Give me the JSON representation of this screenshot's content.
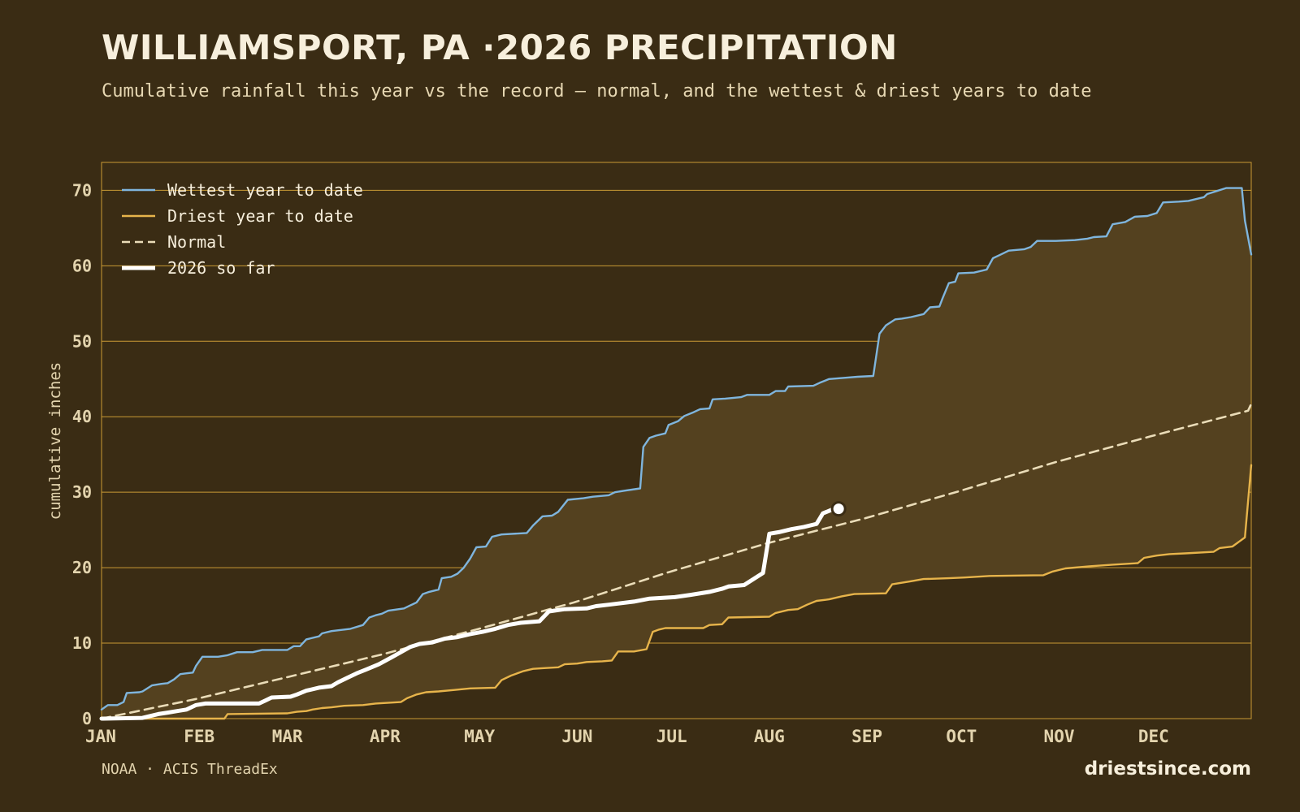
{
  "header": {
    "title": "WILLIAMSPORT, PA ·2026 PRECIPITATION",
    "subtitle": "Cumulative rainfall this year vs the record — normal, and the wettest & driest years to date"
  },
  "footer": {
    "source": "NOAA · ACIS ThreadEx",
    "site": "driestsince.com"
  },
  "colors": {
    "background": "#3a2c14",
    "band": "#54411f",
    "grid": "#c99a35",
    "wettest": "#7fb5dd",
    "driest": "#e7b44b",
    "normal": "#eadcb8",
    "current": "#ffffff"
  },
  "chart_data": {
    "type": "line",
    "xlabel": "",
    "ylabel": "cumulative inches",
    "ylim": [
      0,
      73.7
    ],
    "yticks": [
      0,
      10,
      20,
      30,
      40,
      50,
      60,
      70
    ],
    "months": [
      "JAN",
      "FEB",
      "MAR",
      "APR",
      "MAY",
      "JUN",
      "JUL",
      "AUG",
      "SEP",
      "OCT",
      "NOV",
      "DEC"
    ],
    "x_unit": "day of year",
    "xlim": [
      1,
      366
    ],
    "legend": {
      "placement": "top-left",
      "entries": [
        "Wettest year to date",
        "Driest year to date",
        "Normal",
        "2026 so far"
      ]
    },
    "band": "fill between wettest and driest",
    "series": [
      {
        "name": "Wettest year to date",
        "style": "solid",
        "points": [
          [
            1,
            1.2
          ],
          [
            3,
            1.8
          ],
          [
            6,
            1.8
          ],
          [
            8,
            2.2
          ],
          [
            9,
            3.4
          ],
          [
            13,
            3.5
          ],
          [
            14,
            3.6
          ],
          [
            17,
            4.4
          ],
          [
            20,
            4.6
          ],
          [
            22,
            4.7
          ],
          [
            24,
            5.2
          ],
          [
            26,
            5.9
          ],
          [
            28,
            6.0
          ],
          [
            30,
            6.1
          ],
          [
            31,
            7.0
          ],
          [
            33,
            8.2
          ],
          [
            38,
            8.2
          ],
          [
            41,
            8.4
          ],
          [
            44,
            8.8
          ],
          [
            49,
            8.8
          ],
          [
            52,
            9.1
          ],
          [
            60,
            9.1
          ],
          [
            62,
            9.6
          ],
          [
            64,
            9.6
          ],
          [
            66,
            10.5
          ],
          [
            70,
            10.9
          ],
          [
            71,
            11.3
          ],
          [
            74,
            11.6
          ],
          [
            80,
            11.9
          ],
          [
            84,
            12.4
          ],
          [
            86,
            13.4
          ],
          [
            88,
            13.7
          ],
          [
            90,
            13.9
          ],
          [
            92,
            14.3
          ],
          [
            97,
            14.6
          ],
          [
            99,
            15.0
          ],
          [
            101,
            15.4
          ],
          [
            103,
            16.5
          ],
          [
            105,
            16.8
          ],
          [
            108,
            17.1
          ],
          [
            109,
            18.6
          ],
          [
            112,
            18.8
          ],
          [
            114,
            19.2
          ],
          [
            116,
            20.0
          ],
          [
            118,
            21.2
          ],
          [
            120,
            22.7
          ],
          [
            123,
            22.8
          ],
          [
            125,
            24.1
          ],
          [
            128,
            24.4
          ],
          [
            136,
            24.6
          ],
          [
            138,
            25.6
          ],
          [
            141,
            26.8
          ],
          [
            144,
            26.9
          ],
          [
            146,
            27.4
          ],
          [
            149,
            29.0
          ],
          [
            154,
            29.2
          ],
          [
            157,
            29.4
          ],
          [
            162,
            29.6
          ],
          [
            164,
            30.0
          ],
          [
            167,
            30.2
          ],
          [
            172,
            30.5
          ],
          [
            173,
            36.0
          ],
          [
            175,
            37.2
          ],
          [
            177,
            37.5
          ],
          [
            180,
            37.8
          ],
          [
            181,
            38.9
          ],
          [
            184,
            39.4
          ],
          [
            186,
            40.1
          ],
          [
            189,
            40.6
          ],
          [
            191,
            41.0
          ],
          [
            194,
            41.1
          ],
          [
            195,
            42.3
          ],
          [
            199,
            42.4
          ],
          [
            204,
            42.6
          ],
          [
            206,
            42.9
          ],
          [
            213,
            42.9
          ],
          [
            215,
            43.4
          ],
          [
            218,
            43.4
          ],
          [
            219,
            44.0
          ],
          [
            227,
            44.1
          ],
          [
            229,
            44.5
          ],
          [
            232,
            45.0
          ],
          [
            238,
            45.2
          ],
          [
            241,
            45.3
          ],
          [
            246,
            45.4
          ],
          [
            248,
            51.0
          ],
          [
            250,
            52.1
          ],
          [
            253,
            52.9
          ],
          [
            255,
            53.0
          ],
          [
            258,
            53.2
          ],
          [
            262,
            53.6
          ],
          [
            264,
            54.5
          ],
          [
            267,
            54.6
          ],
          [
            268,
            55.7
          ],
          [
            270,
            57.7
          ],
          [
            272,
            57.9
          ],
          [
            273,
            59.0
          ],
          [
            278,
            59.1
          ],
          [
            282,
            59.5
          ],
          [
            284,
            61.0
          ],
          [
            286,
            61.4
          ],
          [
            289,
            62.0
          ],
          [
            294,
            62.2
          ],
          [
            296,
            62.5
          ],
          [
            298,
            63.3
          ],
          [
            304,
            63.3
          ],
          [
            310,
            63.4
          ],
          [
            314,
            63.6
          ],
          [
            316,
            63.8
          ],
          [
            320,
            63.9
          ],
          [
            322,
            65.5
          ],
          [
            326,
            65.8
          ],
          [
            329,
            66.5
          ],
          [
            333,
            66.6
          ],
          [
            336,
            67.0
          ],
          [
            338,
            68.4
          ],
          [
            343,
            68.5
          ],
          [
            346,
            68.6
          ],
          [
            351,
            69.1
          ],
          [
            352,
            69.5
          ],
          [
            355,
            69.9
          ],
          [
            358,
            70.3
          ],
          [
            363,
            70.3
          ],
          [
            364,
            66.0
          ],
          [
            366,
            61.5
          ]
        ]
      },
      {
        "name": "Driest year to date",
        "style": "solid",
        "points": [
          [
            1,
            0
          ],
          [
            40,
            0
          ],
          [
            41,
            0.6
          ],
          [
            60,
            0.7
          ],
          [
            63,
            0.9
          ],
          [
            66,
            1.0
          ],
          [
            68,
            1.2
          ],
          [
            71,
            1.4
          ],
          [
            74,
            1.5
          ],
          [
            78,
            1.7
          ],
          [
            84,
            1.8
          ],
          [
            88,
            2.0
          ],
          [
            96,
            2.2
          ],
          [
            98,
            2.7
          ],
          [
            101,
            3.2
          ],
          [
            104,
            3.5
          ],
          [
            108,
            3.6
          ],
          [
            113,
            3.8
          ],
          [
            118,
            4.0
          ],
          [
            126,
            4.1
          ],
          [
            128,
            5.1
          ],
          [
            131,
            5.7
          ],
          [
            135,
            6.3
          ],
          [
            138,
            6.6
          ],
          [
            142,
            6.7
          ],
          [
            146,
            6.8
          ],
          [
            148,
            7.2
          ],
          [
            152,
            7.3
          ],
          [
            155,
            7.5
          ],
          [
            160,
            7.6
          ],
          [
            163,
            7.7
          ],
          [
            165,
            8.9
          ],
          [
            170,
            8.9
          ],
          [
            174,
            9.2
          ],
          [
            176,
            11.5
          ],
          [
            178,
            11.8
          ],
          [
            180,
            12.0
          ],
          [
            192,
            12.0
          ],
          [
            194,
            12.4
          ],
          [
            198,
            12.5
          ],
          [
            200,
            13.4
          ],
          [
            213,
            13.5
          ],
          [
            215,
            14.0
          ],
          [
            219,
            14.4
          ],
          [
            222,
            14.5
          ],
          [
            225,
            15.1
          ],
          [
            228,
            15.6
          ],
          [
            232,
            15.8
          ],
          [
            236,
            16.2
          ],
          [
            240,
            16.5
          ],
          [
            250,
            16.6
          ],
          [
            252,
            17.8
          ],
          [
            258,
            18.2
          ],
          [
            262,
            18.5
          ],
          [
            270,
            18.6
          ],
          [
            275,
            18.7
          ],
          [
            283,
            18.9
          ],
          [
            300,
            19.0
          ],
          [
            303,
            19.5
          ],
          [
            307,
            19.9
          ],
          [
            315,
            20.2
          ],
          [
            322,
            20.4
          ],
          [
            330,
            20.6
          ],
          [
            332,
            21.3
          ],
          [
            336,
            21.6
          ],
          [
            340,
            21.8
          ],
          [
            345,
            21.9
          ],
          [
            354,
            22.1
          ],
          [
            356,
            22.6
          ],
          [
            360,
            22.8
          ],
          [
            364,
            24.0
          ],
          [
            366,
            33.6
          ]
        ]
      },
      {
        "name": "Normal",
        "style": "dashed",
        "points": [
          [
            1,
            0
          ],
          [
            31,
            2.6
          ],
          [
            59,
            5.4
          ],
          [
            90,
            8.5
          ],
          [
            120,
            11.8
          ],
          [
            151,
            15.4
          ],
          [
            181,
            19.4
          ],
          [
            212,
            23.2
          ],
          [
            243,
            26.5
          ],
          [
            273,
            30.1
          ],
          [
            304,
            34.0
          ],
          [
            334,
            37.4
          ],
          [
            365,
            40.8
          ],
          [
            366,
            41.7
          ]
        ]
      },
      {
        "name": "2026 so far",
        "style": "thick",
        "points": [
          [
            1,
            0
          ],
          [
            14,
            0.1
          ],
          [
            16,
            0.3
          ],
          [
            19,
            0.6
          ],
          [
            22,
            0.8
          ],
          [
            25,
            1.0
          ],
          [
            28,
            1.2
          ],
          [
            31,
            1.8
          ],
          [
            34,
            2.0
          ],
          [
            51,
            2.0
          ],
          [
            53,
            2.4
          ],
          [
            55,
            2.8
          ],
          [
            61,
            2.9
          ],
          [
            63,
            3.2
          ],
          [
            66,
            3.7
          ],
          [
            70,
            4.1
          ],
          [
            74,
            4.3
          ],
          [
            76,
            4.8
          ],
          [
            79,
            5.4
          ],
          [
            82,
            6.0
          ],
          [
            85,
            6.5
          ],
          [
            89,
            7.2
          ],
          [
            93,
            8.1
          ],
          [
            96,
            8.8
          ],
          [
            99,
            9.5
          ],
          [
            102,
            9.9
          ],
          [
            106,
            10.1
          ],
          [
            110,
            10.6
          ],
          [
            114,
            10.8
          ],
          [
            118,
            11.2
          ],
          [
            122,
            11.5
          ],
          [
            126,
            11.9
          ],
          [
            130,
            12.4
          ],
          [
            134,
            12.7
          ],
          [
            140,
            12.9
          ],
          [
            143,
            14.2
          ],
          [
            148,
            14.5
          ],
          [
            155,
            14.6
          ],
          [
            158,
            14.9
          ],
          [
            162,
            15.1
          ],
          [
            170,
            15.5
          ],
          [
            175,
            15.9
          ],
          [
            183,
            16.1
          ],
          [
            188,
            16.4
          ],
          [
            194,
            16.8
          ],
          [
            198,
            17.2
          ],
          [
            200,
            17.5
          ],
          [
            205,
            17.7
          ],
          [
            211,
            19.3
          ],
          [
            213,
            24.5
          ],
          [
            216,
            24.7
          ],
          [
            220,
            25.1
          ],
          [
            224,
            25.4
          ],
          [
            228,
            25.8
          ],
          [
            230,
            27.2
          ],
          [
            233,
            27.7
          ]
        ]
      }
    ],
    "current_marker": {
      "day": 235,
      "value": 27.8
    }
  }
}
